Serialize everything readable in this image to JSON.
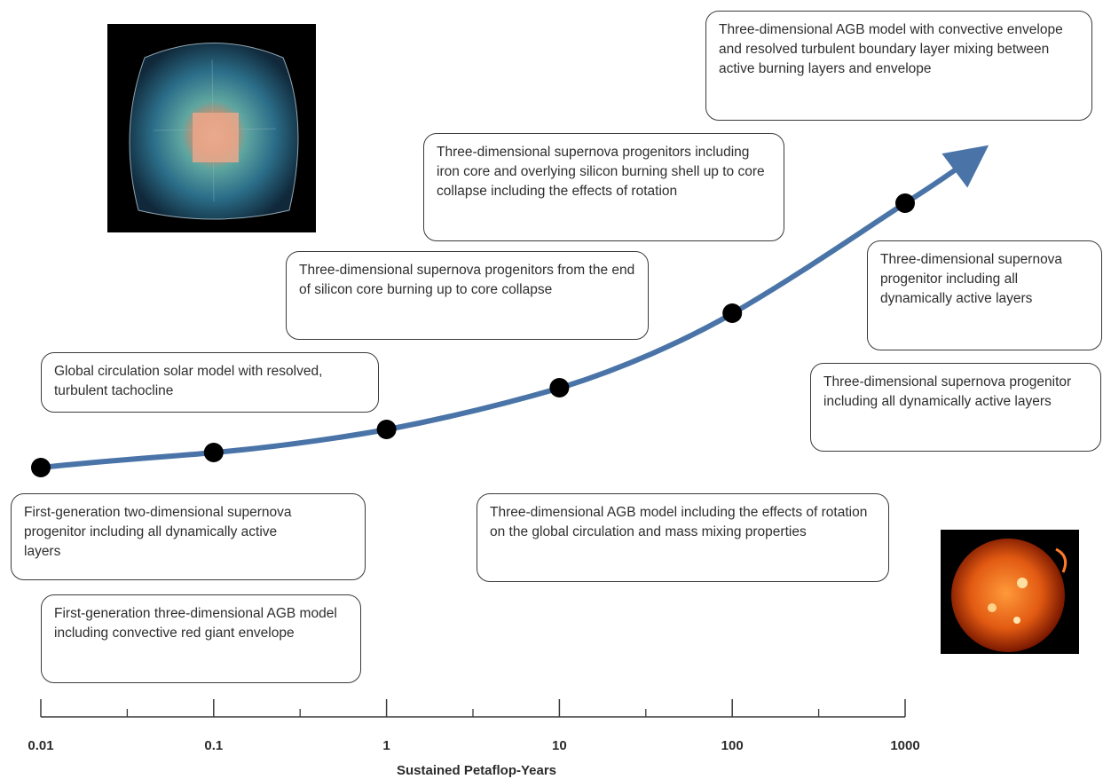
{
  "axis": {
    "title": "Sustained Petaflop-Years",
    "ticks": [
      "0.01",
      "0.1",
      "1",
      "10",
      "100",
      "1000"
    ],
    "scale": "log"
  },
  "points": [
    0.01,
    0.1,
    1,
    10,
    100,
    1000
  ],
  "callouts": {
    "first_gen_2d": "First-generation two-dimensional supernova progenitor including all dynamically active layers",
    "first_gen_3d_agb": "First-generation three-dimensional AGB model including convective red giant envelope",
    "solar_model": "Global circulation solar model with resolved, turbulent tachocline",
    "si_core_burning": "Three-dimensional supernova progenitors from the end of silicon core burning up to core collapse",
    "iron_core": "Three-dimensional supernova progenitors including iron core and overlying silicon burning shell up to core collapse including the effects of rotation",
    "agb_rotation": "Three-dimensional AGB model including the effects of rotation on the global circulation and mass mixing properties",
    "agb_boundary": "Three-dimensional AGB model with convective envelope and resolved turbulent boundary layer mixing between active burning layers and envelope",
    "progenitor_a": "Three-dimensional supernova progenitor including all dynamically active layers",
    "progenitor_b": "Three-dimensional supernova progenitor including all dynamically active layers"
  },
  "colors": {
    "curve": "#4a74a8",
    "point": "#000000",
    "axis": "#3a3a3a"
  }
}
